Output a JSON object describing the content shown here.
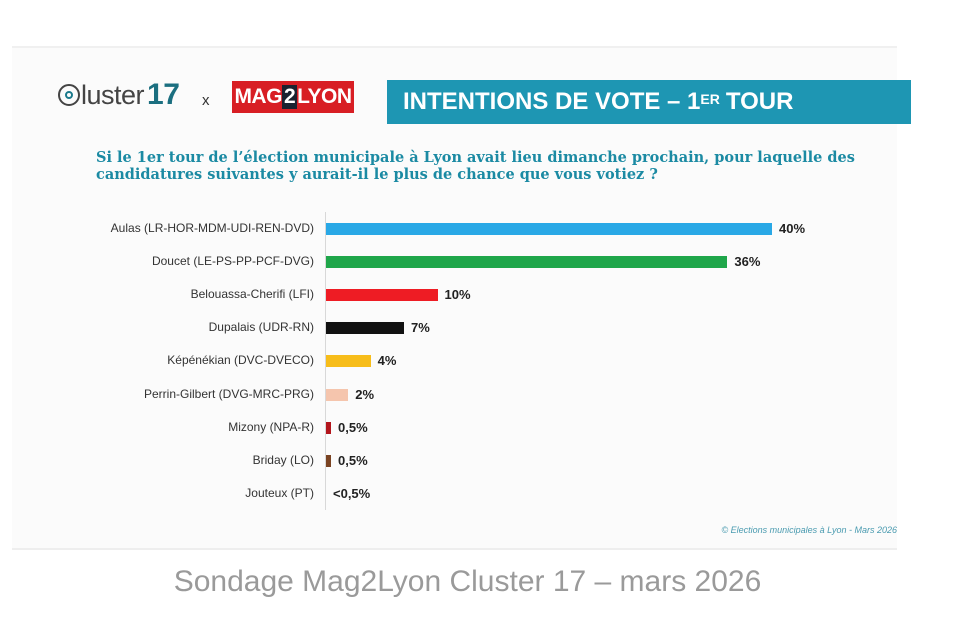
{
  "header": {
    "cluster_logo_text": "luster",
    "cluster_logo_num": "17",
    "separator": "x",
    "mag_logo_left": "MAG",
    "mag_logo_num": "2",
    "mag_logo_right": "LYON",
    "title_main": "INTENTIONS DE VOTE – 1",
    "title_sup": "ER",
    "title_end": "TOUR"
  },
  "question": "Si le 1er tour de l’élection municipale à Lyon avait lieu dimanche prochain, pour laquelle des candidatures suivantes y aurait-il le plus de chance que vous votiez ?",
  "source": "© Elections municipales à Lyon - Mars 2026",
  "caption": "Sondage Mag2Lyon Cluster 17 – mars 2026",
  "chart_data": {
    "type": "bar",
    "orientation": "horizontal",
    "title": "INTENTIONS DE VOTE – 1ER TOUR",
    "xlabel": "",
    "ylabel": "",
    "xlim": [
      0,
      40
    ],
    "grid": false,
    "categories": [
      "Aulas (LR-HOR-MDM-UDI-REN-DVD)",
      "Doucet (LE-PS-PP-PCF-DVG)",
      "Belouassa-Cherifi (LFI)",
      "Dupalais (UDR-RN)",
      "Képénékian (DVC-DVECO)",
      "Perrin-Gilbert (DVG-MRC-PRG)",
      "Mizony (NPA-R)",
      "Briday (LO)",
      "Jouteux (PT)"
    ],
    "values": [
      40,
      36,
      10,
      7,
      4,
      2,
      0.5,
      0.5,
      0
    ],
    "value_labels": [
      "40%",
      "36%",
      "10%",
      "7%",
      "4%",
      "2%",
      "0,5%",
      "0,5%",
      "<0,5%"
    ],
    "colors": [
      "#29a8e6",
      "#1fa64a",
      "#ee1c24",
      "#111111",
      "#f7bd1a",
      "#f5c5ad",
      "#b3151c",
      "#7a4322",
      "#ffffff"
    ]
  }
}
